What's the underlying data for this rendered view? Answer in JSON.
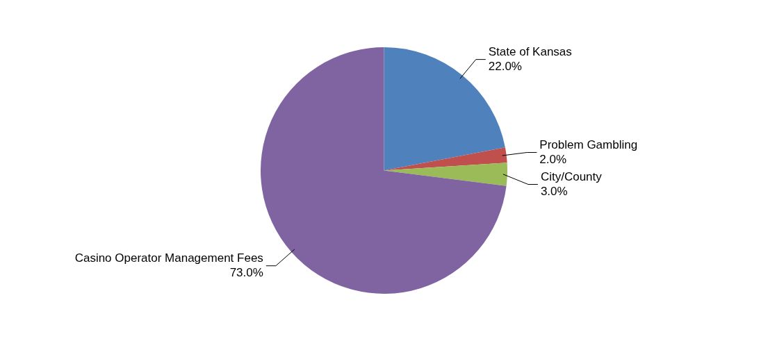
{
  "chart_data": {
    "type": "pie",
    "categories": [
      "State of Kansas",
      "Problem Gambling",
      "City/County",
      "Casino Operator Management Fees"
    ],
    "values": [
      22,
      2,
      3,
      73
    ],
    "colors": [
      "#4f81bd",
      "#c0504d",
      "#9bbb59",
      "#8064a2"
    ],
    "value_labels": [
      "22.0%",
      "2.0%",
      "3.0%",
      "73.0%"
    ],
    "legend": false
  }
}
